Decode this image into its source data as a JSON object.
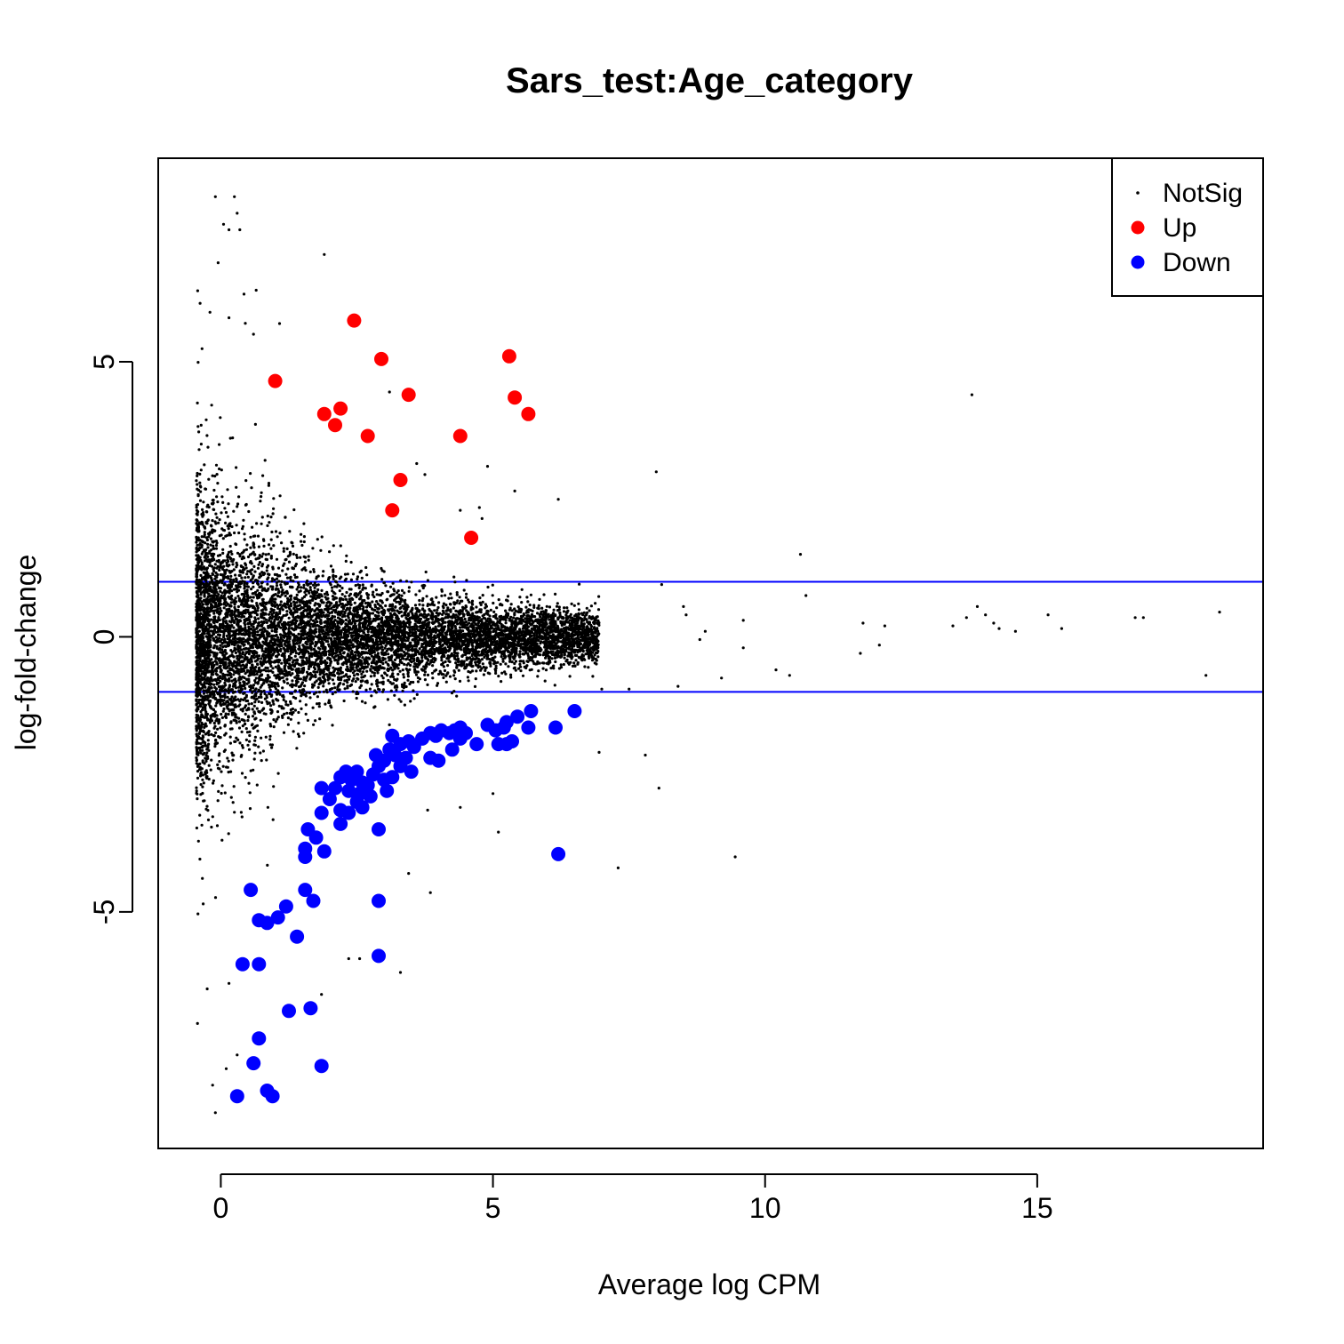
{
  "chart_data": {
    "type": "scatter",
    "title": "Sars_test:Age_category",
    "xlabel": "Average log CPM",
    "ylabel": "log-fold-change",
    "xlim": [
      -1.15,
      19.15
    ],
    "ylim": [
      -9.3,
      8.7
    ],
    "x_ticks": [
      0,
      5,
      10,
      15
    ],
    "y_ticks": [
      -5,
      0,
      5
    ],
    "x_tick_labels": [
      "0",
      "5",
      "10",
      "15"
    ],
    "y_tick_labels": [
      "-5",
      "0",
      "5"
    ],
    "grid": false,
    "legend_position": "top-right",
    "threshold_lines": [
      1,
      -1
    ],
    "threshold_color": "#0000ff",
    "legend": [
      {
        "label": "NotSig",
        "color": "#000000",
        "marker": "small-dot"
      },
      {
        "label": "Up",
        "color": "#ff0000",
        "marker": "dot"
      },
      {
        "label": "Down",
        "color": "#0000ff",
        "marker": "dot"
      }
    ],
    "series": [
      {
        "name": "Up",
        "color": "#ff0000",
        "points": [
          [
            1.0,
            4.65
          ],
          [
            2.45,
            5.75
          ],
          [
            2.95,
            5.05
          ],
          [
            5.3,
            5.1
          ],
          [
            5.4,
            4.35
          ],
          [
            3.45,
            4.4
          ],
          [
            5.65,
            4.05
          ],
          [
            1.9,
            4.05
          ],
          [
            2.2,
            4.15
          ],
          [
            2.1,
            3.85
          ],
          [
            2.7,
            3.65
          ],
          [
            4.4,
            3.65
          ],
          [
            3.3,
            2.85
          ],
          [
            3.15,
            2.3
          ],
          [
            4.6,
            1.8
          ]
        ]
      },
      {
        "name": "Down",
        "color": "#0000ff",
        "points": [
          [
            0.55,
            -4.6
          ],
          [
            0.7,
            -5.15
          ],
          [
            0.85,
            -5.2
          ],
          [
            1.05,
            -5.1
          ],
          [
            1.2,
            -4.9
          ],
          [
            1.4,
            -5.45
          ],
          [
            1.55,
            -4.6
          ],
          [
            1.7,
            -4.8
          ],
          [
            0.4,
            -5.95
          ],
          [
            0.7,
            -5.95
          ],
          [
            1.25,
            -6.8
          ],
          [
            1.65,
            -6.75
          ],
          [
            0.7,
            -7.3
          ],
          [
            0.6,
            -7.75
          ],
          [
            1.85,
            -7.8
          ],
          [
            0.3,
            -8.35
          ],
          [
            0.85,
            -8.25
          ],
          [
            0.95,
            -8.35
          ],
          [
            2.9,
            -4.8
          ],
          [
            2.9,
            -5.8
          ],
          [
            1.55,
            -3.85
          ],
          [
            1.55,
            -4.0
          ],
          [
            1.9,
            -3.9
          ],
          [
            1.6,
            -3.5
          ],
          [
            1.75,
            -3.65
          ],
          [
            1.85,
            -3.2
          ],
          [
            2.9,
            -3.5
          ],
          [
            1.85,
            -2.75
          ],
          [
            2.0,
            -2.95
          ],
          [
            2.1,
            -2.75
          ],
          [
            2.2,
            -3.15
          ],
          [
            2.35,
            -3.2
          ],
          [
            2.2,
            -3.4
          ],
          [
            2.5,
            -3.0
          ],
          [
            2.6,
            -3.1
          ],
          [
            2.2,
            -2.55
          ],
          [
            2.3,
            -2.45
          ],
          [
            2.4,
            -2.6
          ],
          [
            2.5,
            -2.45
          ],
          [
            2.6,
            -2.65
          ],
          [
            2.7,
            -2.7
          ],
          [
            2.8,
            -2.5
          ],
          [
            2.9,
            -2.35
          ],
          [
            3.0,
            -2.6
          ],
          [
            3.05,
            -2.8
          ],
          [
            3.15,
            -2.55
          ],
          [
            2.35,
            -2.8
          ],
          [
            2.55,
            -2.85
          ],
          [
            2.75,
            -2.9
          ],
          [
            2.85,
            -2.15
          ],
          [
            3.0,
            -2.25
          ],
          [
            3.1,
            -2.05
          ],
          [
            3.2,
            -2.15
          ],
          [
            3.3,
            -2.35
          ],
          [
            3.4,
            -2.2
          ],
          [
            3.5,
            -2.45
          ],
          [
            3.15,
            -1.8
          ],
          [
            3.3,
            -1.95
          ],
          [
            3.45,
            -1.9
          ],
          [
            3.55,
            -2.0
          ],
          [
            3.7,
            -1.85
          ],
          [
            3.85,
            -1.75
          ],
          [
            3.95,
            -1.8
          ],
          [
            4.05,
            -1.7
          ],
          [
            4.2,
            -1.75
          ],
          [
            4.3,
            -1.7
          ],
          [
            4.4,
            -1.65
          ],
          [
            4.5,
            -1.75
          ],
          [
            3.85,
            -2.2
          ],
          [
            4.0,
            -2.25
          ],
          [
            4.25,
            -2.05
          ],
          [
            4.4,
            -1.85
          ],
          [
            4.7,
            -1.95
          ],
          [
            4.9,
            -1.6
          ],
          [
            5.05,
            -1.7
          ],
          [
            5.2,
            -1.65
          ],
          [
            5.25,
            -1.55
          ],
          [
            5.45,
            -1.45
          ],
          [
            5.7,
            -1.35
          ],
          [
            5.1,
            -1.95
          ],
          [
            5.25,
            -1.95
          ],
          [
            5.35,
            -1.9
          ],
          [
            5.65,
            -1.65
          ],
          [
            6.15,
            -1.65
          ],
          [
            6.5,
            -1.35
          ],
          [
            6.2,
            -3.95
          ]
        ]
      },
      {
        "name": "NotSig",
        "color": "#000000",
        "outliers": [
          [
            -0.1,
            8.0
          ],
          [
            0.25,
            8.0
          ],
          [
            0.3,
            7.7
          ],
          [
            0.05,
            7.5
          ],
          [
            0.15,
            7.4
          ],
          [
            0.35,
            7.4
          ],
          [
            -0.05,
            6.8
          ],
          [
            1.9,
            6.95
          ],
          [
            0.65,
            6.3
          ],
          [
            -0.2,
            5.9
          ],
          [
            0.15,
            5.8
          ],
          [
            0.45,
            5.7
          ],
          [
            0.6,
            5.5
          ],
          [
            13.8,
            4.4
          ],
          [
            8.0,
            3.0
          ],
          [
            6.2,
            2.5
          ],
          [
            10.65,
            1.5
          ],
          [
            10.75,
            0.75
          ],
          [
            8.1,
            0.95
          ],
          [
            8.5,
            0.55
          ],
          [
            8.55,
            0.4
          ],
          [
            9.6,
            0.3
          ],
          [
            8.8,
            -0.05
          ],
          [
            8.9,
            0.1
          ],
          [
            9.6,
            -0.2
          ],
          [
            11.8,
            0.25
          ],
          [
            12.2,
            0.2
          ],
          [
            12.1,
            -0.15
          ],
          [
            11.75,
            -0.3
          ],
          [
            13.45,
            0.2
          ],
          [
            13.7,
            0.35
          ],
          [
            13.9,
            0.55
          ],
          [
            14.05,
            0.4
          ],
          [
            14.2,
            0.25
          ],
          [
            14.3,
            0.15
          ],
          [
            14.6,
            0.1
          ],
          [
            15.2,
            0.4
          ],
          [
            15.45,
            0.15
          ],
          [
            16.8,
            0.35
          ],
          [
            16.95,
            0.35
          ],
          [
            18.35,
            0.45
          ],
          [
            18.1,
            -0.7
          ],
          [
            10.2,
            -0.6
          ],
          [
            10.45,
            -0.7
          ],
          [
            9.2,
            -0.75
          ],
          [
            8.4,
            -0.9
          ],
          [
            7.5,
            -0.95
          ],
          [
            7.0,
            -0.95
          ],
          [
            7.8,
            -2.15
          ],
          [
            6.95,
            -2.1
          ],
          [
            8.05,
            -2.75
          ],
          [
            9.45,
            -4.0
          ],
          [
            7.3,
            -4.2
          ],
          [
            3.45,
            -4.3
          ],
          [
            3.85,
            -4.65
          ],
          [
            2.35,
            -5.85
          ],
          [
            2.55,
            -5.85
          ],
          [
            3.3,
            -6.1
          ],
          [
            1.85,
            -6.5
          ],
          [
            0.15,
            -6.3
          ],
          [
            -0.25,
            -6.4
          ],
          [
            0.3,
            -7.6
          ],
          [
            0.1,
            -7.85
          ],
          [
            -0.1,
            -8.65
          ],
          [
            -0.15,
            -8.15
          ],
          [
            3.1,
            4.45
          ],
          [
            3.6,
            3.15
          ],
          [
            4.9,
            3.1
          ],
          [
            5.4,
            2.65
          ],
          [
            3.75,
            2.95
          ],
          [
            4.4,
            2.3
          ],
          [
            4.8,
            2.15
          ],
          [
            4.75,
            2.35
          ],
          [
            3.8,
            -3.15
          ],
          [
            5.0,
            -2.85
          ],
          [
            5.1,
            -3.55
          ],
          [
            4.4,
            -3.1
          ]
        ]
      }
    ]
  }
}
